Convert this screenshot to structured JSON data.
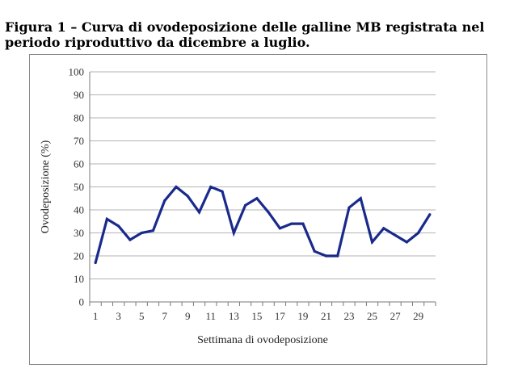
{
  "caption": "Figura 1 – Curva di ovodeposizione delle galline MB registrata nel periodo riproduttivo da dicembre a luglio.",
  "chart_data": {
    "type": "line",
    "title": "",
    "xlabel": "Settimana di ovodeposizione",
    "ylabel": "Ovodeposizione (%)",
    "ylim": [
      0,
      100
    ],
    "yticks": [
      0,
      10,
      20,
      30,
      40,
      50,
      60,
      70,
      80,
      90,
      100
    ],
    "xtick_labels": [
      "1",
      "3",
      "5",
      "7",
      "9",
      "11",
      "13",
      "15",
      "17",
      "19",
      "21",
      "23",
      "25",
      "27",
      "29"
    ],
    "grid": "horizontal",
    "legend": "none",
    "line_color": "#1a2a8c",
    "x": [
      1,
      2,
      3,
      4,
      5,
      6,
      7,
      8,
      9,
      10,
      11,
      12,
      13,
      14,
      15,
      16,
      17,
      18,
      19,
      20,
      21,
      22,
      23,
      24,
      25,
      26,
      27,
      28,
      29,
      30
    ],
    "series": [
      {
        "values": [
          17,
          36,
          33,
          27,
          30,
          31,
          44,
          50,
          46,
          39,
          50,
          48,
          30,
          42,
          45,
          39,
          32,
          34,
          34,
          22,
          20,
          20,
          41,
          45,
          26,
          32,
          29,
          26,
          30,
          38
        ]
      }
    ]
  }
}
